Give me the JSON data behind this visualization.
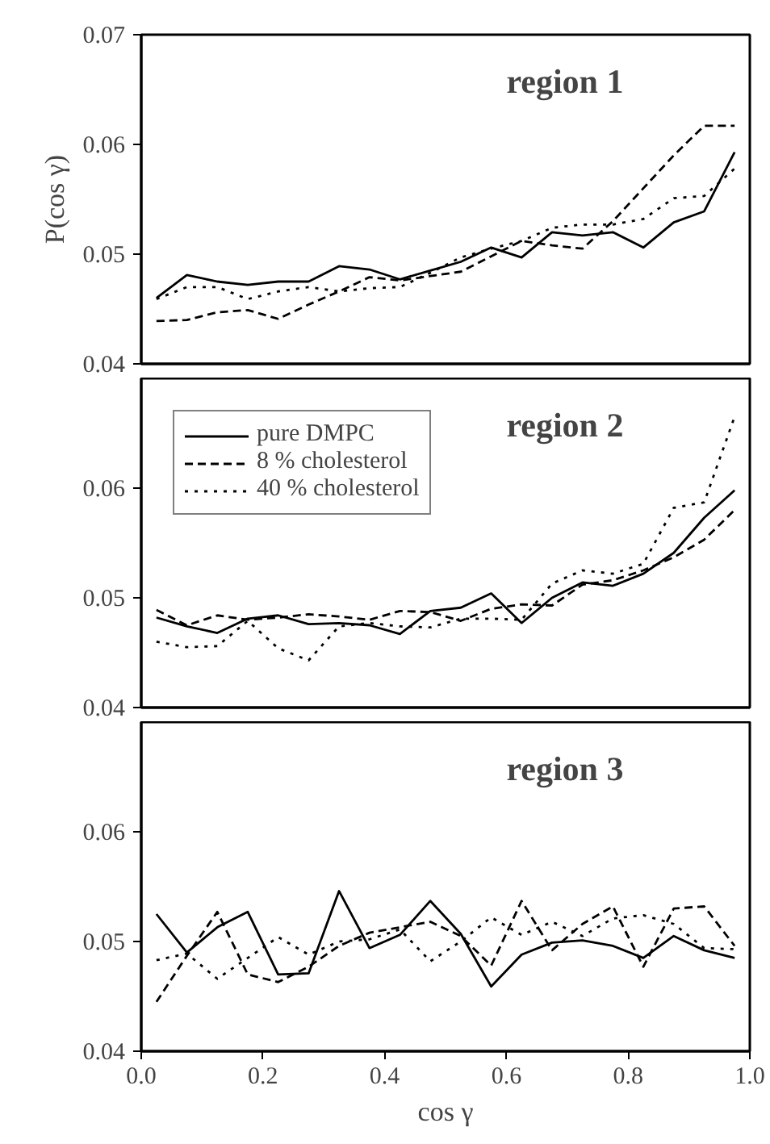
{
  "chart_data": [
    {
      "type": "line",
      "title": "region 1",
      "ylabel": "P(cos γ)",
      "xlim": [
        0,
        1
      ],
      "xticks": [
        0,
        0.2,
        0.4,
        0.6,
        0.8,
        1
      ],
      "ylim": [
        0.04,
        0.07
      ],
      "yticks": [
        0.04,
        0.05,
        0.06,
        0.07
      ],
      "tick_labels": "y",
      "legend": false,
      "x": [
        0.025,
        0.075,
        0.125,
        0.175,
        0.225,
        0.275,
        0.325,
        0.375,
        0.425,
        0.475,
        0.525,
        0.575,
        0.625,
        0.675,
        0.725,
        0.775,
        0.825,
        0.875,
        0.925,
        0.975
      ],
      "series": [
        {
          "color": "#000000",
          "line_style": "solid",
          "values": [
            0.046,
            0.0481,
            0.0475,
            0.0472,
            0.0475,
            0.0475,
            0.0489,
            0.0486,
            0.0477,
            0.0485,
            0.0493,
            0.0506,
            0.0497,
            0.052,
            0.0517,
            0.052,
            0.0506,
            0.0529,
            0.0539,
            0.0593
          ]
        },
        {
          "color": "#000000",
          "line_style": "dashed",
          "values": [
            0.0439,
            0.044,
            0.0447,
            0.0449,
            0.0441,
            0.0454,
            0.0466,
            0.0479,
            0.0476,
            0.048,
            0.0484,
            0.0498,
            0.0512,
            0.0508,
            0.0505,
            0.053,
            0.056,
            0.059,
            0.0617,
            0.0617
          ]
        },
        {
          "color": "#000000",
          "line_style": "dotted",
          "values": [
            0.0459,
            0.047,
            0.047,
            0.0459,
            0.0466,
            0.047,
            0.0466,
            0.0469,
            0.047,
            0.0483,
            0.0497,
            0.0505,
            0.0512,
            0.0524,
            0.0527,
            0.0527,
            0.0532,
            0.0551,
            0.0553,
            0.0578
          ]
        }
      ]
    },
    {
      "type": "line",
      "title": "region 2",
      "xlim": [
        0,
        1
      ],
      "xticks": [
        0,
        0.2,
        0.4,
        0.6,
        0.8,
        1
      ],
      "ylim": [
        0.04,
        0.07
      ],
      "yticks": [
        0.04,
        0.05,
        0.06
      ],
      "tick_labels": "y",
      "legend": "top left",
      "x": [
        0.025,
        0.075,
        0.125,
        0.175,
        0.225,
        0.275,
        0.325,
        0.375,
        0.425,
        0.475,
        0.525,
        0.575,
        0.625,
        0.675,
        0.725,
        0.775,
        0.825,
        0.875,
        0.925,
        0.975
      ],
      "series": [
        {
          "name": "pure DMPC",
          "color": "#000000",
          "line_style": "solid",
          "values": [
            0.0482,
            0.0474,
            0.0468,
            0.0481,
            0.0484,
            0.0476,
            0.0477,
            0.0475,
            0.0467,
            0.0488,
            0.0491,
            0.0504,
            0.0477,
            0.05,
            0.0514,
            0.0511,
            0.0522,
            0.0541,
            0.0573,
            0.0598
          ]
        },
        {
          "name": "8 % cholesterol",
          "color": "#000000",
          "line_style": "dashed",
          "values": [
            0.0489,
            0.0475,
            0.0484,
            0.048,
            0.0482,
            0.0485,
            0.0483,
            0.048,
            0.0488,
            0.0487,
            0.0479,
            0.049,
            0.0494,
            0.0493,
            0.0512,
            0.0516,
            0.0525,
            0.0537,
            0.0553,
            0.058
          ]
        },
        {
          "name": "40 % cholesterol",
          "color": "#000000",
          "line_style": "dotted",
          "values": [
            0.046,
            0.0455,
            0.0456,
            0.0479,
            0.0454,
            0.0443,
            0.0474,
            0.0477,
            0.0474,
            0.0473,
            0.0481,
            0.0481,
            0.048,
            0.0513,
            0.0525,
            0.0522,
            0.0531,
            0.0582,
            0.0587,
            0.0665
          ]
        }
      ]
    },
    {
      "type": "line",
      "title": "region 3",
      "xlabel": "cos γ",
      "xlim": [
        0,
        1
      ],
      "xticks": [
        {
          "value": 0,
          "label": "0.0"
        },
        0.2,
        0.4,
        0.6,
        0.8,
        {
          "value": 1,
          "label": "1.0"
        }
      ],
      "ylim": [
        0.04,
        0.07
      ],
      "yticks": [
        0.04,
        0.05,
        0.06
      ],
      "legend": false,
      "x": [
        0.025,
        0.075,
        0.125,
        0.175,
        0.225,
        0.275,
        0.325,
        0.375,
        0.425,
        0.475,
        0.525,
        0.575,
        0.625,
        0.675,
        0.725,
        0.775,
        0.825,
        0.875,
        0.925,
        0.975
      ],
      "series": [
        {
          "color": "#000000",
          "line_style": "solid",
          "values": [
            0.0525,
            0.049,
            0.0513,
            0.0527,
            0.047,
            0.0471,
            0.0546,
            0.0494,
            0.0506,
            0.0537,
            0.0507,
            0.0459,
            0.0488,
            0.0499,
            0.0501,
            0.0496,
            0.0485,
            0.0505,
            0.0492,
            0.0485
          ]
        },
        {
          "color": "#000000",
          "line_style": "dashed",
          "values": [
            0.0445,
            0.0487,
            0.0527,
            0.047,
            0.0463,
            0.0477,
            0.0496,
            0.0508,
            0.0513,
            0.0518,
            0.0505,
            0.0478,
            0.0537,
            0.0492,
            0.0516,
            0.0532,
            0.0477,
            0.053,
            0.0532,
            0.0496
          ]
        },
        {
          "color": "#000000",
          "line_style": "dotted",
          "values": [
            0.0483,
            0.0489,
            0.0466,
            0.0485,
            0.0504,
            0.0488,
            0.05,
            0.0502,
            0.0511,
            0.0482,
            0.05,
            0.0522,
            0.0506,
            0.0518,
            0.0505,
            0.0521,
            0.0524,
            0.0516,
            0.0494,
            0.0493
          ]
        }
      ]
    }
  ]
}
